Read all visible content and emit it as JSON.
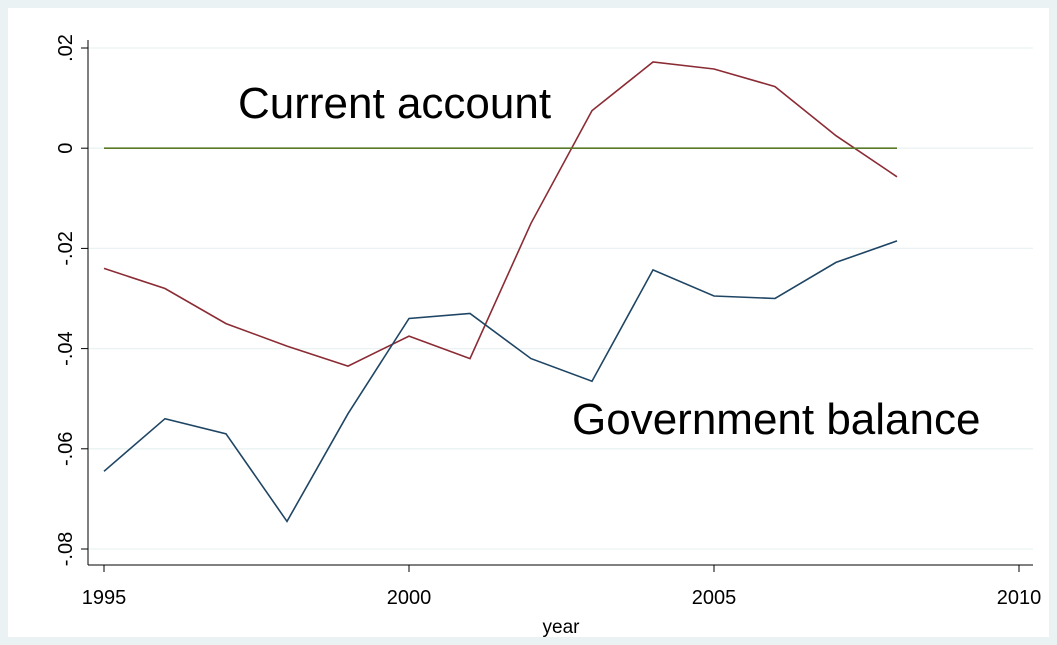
{
  "chart_data": {
    "type": "line",
    "title": "",
    "xlabel": "year",
    "ylabel": "",
    "xlim": [
      1995,
      2010
    ],
    "ylim": [
      -0.08,
      0.02
    ],
    "x_ticks": [
      1995,
      2000,
      2005,
      2010
    ],
    "x_tick_labels": [
      "1995",
      "2000",
      "2005",
      "2010"
    ],
    "y_ticks": [
      -0.08,
      -0.06,
      -0.04,
      -0.02,
      0,
      0.02
    ],
    "y_tick_labels": [
      "-.08",
      "-.06",
      "-.04",
      "-.02",
      "0",
      ".02"
    ],
    "grid": true,
    "legend": "none",
    "annotations": [
      {
        "text": "Current account"
      },
      {
        "text": "Government balance"
      }
    ],
    "x": [
      1995,
      1996,
      1997,
      1998,
      1999,
      2000,
      2001,
      2002,
      2003,
      2004,
      2005,
      2006,
      2007,
      2008
    ],
    "series": [
      {
        "color": "#8b2c35",
        "values": [
          -0.024,
          -0.028,
          -0.035,
          -0.0395,
          -0.0435,
          -0.0375,
          -0.042,
          -0.015,
          0.0075,
          0.0172,
          0.0158,
          0.0123,
          0.0025,
          -0.0057
        ]
      },
      {
        "color": "#1f4564",
        "values": [
          -0.0645,
          -0.054,
          -0.057,
          -0.0745,
          -0.053,
          -0.034,
          -0.033,
          -0.042,
          -0.0465,
          -0.0243,
          -0.0295,
          -0.03,
          -0.0228,
          -0.0185
        ]
      },
      {
        "color": "#5a7a2a",
        "values": [
          0,
          0,
          0,
          0,
          0,
          0,
          0,
          0,
          0,
          0,
          0,
          0,
          0,
          0
        ]
      }
    ]
  }
}
